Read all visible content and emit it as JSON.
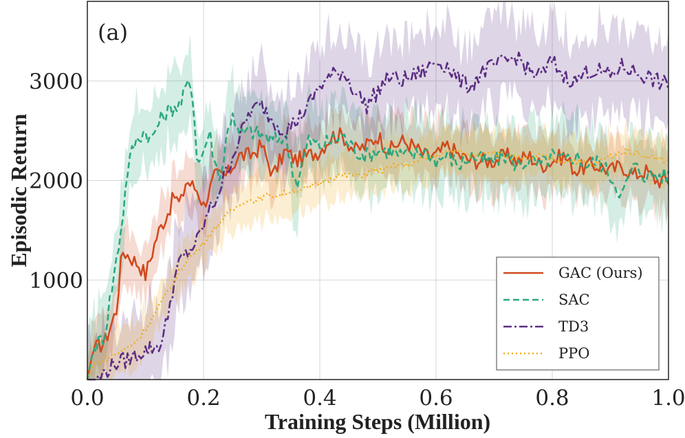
{
  "chart_data": {
    "type": "line",
    "panel_label": "(a)",
    "xlabel": "Training Steps (Million)",
    "ylabel": "Episodic Return",
    "xlim": [
      0.0,
      1.0
    ],
    "ylim": [
      0,
      3800
    ],
    "xticks": [
      0.0,
      0.2,
      0.4,
      0.6,
      0.8,
      1.0
    ],
    "xtick_labels": [
      "0.0",
      "0.2",
      "0.4",
      "0.6",
      "0.8",
      "1.0"
    ],
    "yticks": [
      1000,
      2000,
      3000
    ],
    "ytick_labels": [
      "1000",
      "2000",
      "3000"
    ],
    "grid": true,
    "legend_position": "bottom-right",
    "series": [
      {
        "name": "GAC (Ours)",
        "color": "#d04a1e",
        "dash": "solid",
        "points": [
          [
            0.0,
            0
          ],
          [
            0.01,
            300
          ],
          [
            0.03,
            380
          ],
          [
            0.05,
            700
          ],
          [
            0.06,
            1300
          ],
          [
            0.07,
            1250
          ],
          [
            0.09,
            1150
          ],
          [
            0.1,
            1050
          ],
          [
            0.12,
            1450
          ],
          [
            0.14,
            1700
          ],
          [
            0.15,
            1850
          ],
          [
            0.16,
            1750
          ],
          [
            0.17,
            2000
          ],
          [
            0.19,
            1900
          ],
          [
            0.2,
            1750
          ],
          [
            0.22,
            2050
          ],
          [
            0.24,
            2050
          ],
          [
            0.26,
            2250
          ],
          [
            0.28,
            2250
          ],
          [
            0.3,
            2350
          ],
          [
            0.32,
            2050
          ],
          [
            0.34,
            2300
          ],
          [
            0.36,
            2200
          ],
          [
            0.38,
            2250
          ],
          [
            0.4,
            2300
          ],
          [
            0.42,
            2450
          ],
          [
            0.44,
            2450
          ],
          [
            0.46,
            2300
          ],
          [
            0.48,
            2350
          ],
          [
            0.5,
            2450
          ],
          [
            0.52,
            2300
          ],
          [
            0.54,
            2400
          ],
          [
            0.56,
            2350
          ],
          [
            0.58,
            2250
          ],
          [
            0.6,
            2250
          ],
          [
            0.62,
            2350
          ],
          [
            0.64,
            2250
          ],
          [
            0.66,
            2200
          ],
          [
            0.68,
            2200
          ],
          [
            0.7,
            2200
          ],
          [
            0.72,
            2250
          ],
          [
            0.74,
            2200
          ],
          [
            0.76,
            2250
          ],
          [
            0.78,
            2150
          ],
          [
            0.8,
            2200
          ],
          [
            0.82,
            2250
          ],
          [
            0.84,
            2100
          ],
          [
            0.86,
            2150
          ],
          [
            0.88,
            2150
          ],
          [
            0.9,
            2100
          ],
          [
            0.92,
            2150
          ],
          [
            0.94,
            2050
          ],
          [
            0.96,
            2100
          ],
          [
            0.98,
            2000
          ],
          [
            1.0,
            2000
          ]
        ],
        "band": 280
      },
      {
        "name": "SAC",
        "color": "#2aa87e",
        "dash": "dashed",
        "points": [
          [
            0.0,
            0
          ],
          [
            0.01,
            300
          ],
          [
            0.03,
            450
          ],
          [
            0.04,
            850
          ],
          [
            0.05,
            1200
          ],
          [
            0.06,
            1600
          ],
          [
            0.07,
            2150
          ],
          [
            0.08,
            2350
          ],
          [
            0.09,
            2450
          ],
          [
            0.1,
            2500
          ],
          [
            0.11,
            2400
          ],
          [
            0.12,
            2550
          ],
          [
            0.13,
            2650
          ],
          [
            0.14,
            2700
          ],
          [
            0.15,
            2750
          ],
          [
            0.16,
            2750
          ],
          [
            0.17,
            2950
          ],
          [
            0.18,
            2950
          ],
          [
            0.19,
            2150
          ],
          [
            0.2,
            2300
          ],
          [
            0.21,
            2500
          ],
          [
            0.22,
            2150
          ],
          [
            0.23,
            2050
          ],
          [
            0.24,
            2450
          ],
          [
            0.25,
            2700
          ],
          [
            0.26,
            2450
          ],
          [
            0.28,
            2500
          ],
          [
            0.3,
            2450
          ],
          [
            0.32,
            2400
          ],
          [
            0.34,
            2450
          ],
          [
            0.36,
            1950
          ],
          [
            0.38,
            2400
          ],
          [
            0.4,
            2350
          ],
          [
            0.42,
            2400
          ],
          [
            0.44,
            2450
          ],
          [
            0.46,
            2300
          ],
          [
            0.48,
            2250
          ],
          [
            0.5,
            2300
          ],
          [
            0.52,
            2300
          ],
          [
            0.54,
            2250
          ],
          [
            0.56,
            2250
          ],
          [
            0.58,
            2300
          ],
          [
            0.6,
            2200
          ],
          [
            0.62,
            2250
          ],
          [
            0.64,
            2150
          ],
          [
            0.66,
            2250
          ],
          [
            0.68,
            2200
          ],
          [
            0.7,
            2200
          ],
          [
            0.72,
            2250
          ],
          [
            0.74,
            2150
          ],
          [
            0.76,
            2200
          ],
          [
            0.78,
            2150
          ],
          [
            0.8,
            2250
          ],
          [
            0.82,
            2200
          ],
          [
            0.84,
            2250
          ],
          [
            0.86,
            2150
          ],
          [
            0.88,
            2200
          ],
          [
            0.9,
            2050
          ],
          [
            0.92,
            1850
          ],
          [
            0.94,
            2150
          ],
          [
            0.96,
            2050
          ],
          [
            0.98,
            2050
          ],
          [
            1.0,
            2050
          ]
        ],
        "band": 360
      },
      {
        "name": "TD3",
        "color": "#5b2d82",
        "dash": "dashdot",
        "points": [
          [
            0.0,
            0
          ],
          [
            0.02,
            0
          ],
          [
            0.03,
            80
          ],
          [
            0.05,
            170
          ],
          [
            0.07,
            200
          ],
          [
            0.09,
            270
          ],
          [
            0.11,
            320
          ],
          [
            0.12,
            330
          ],
          [
            0.13,
            400
          ],
          [
            0.14,
            700
          ],
          [
            0.15,
            1000
          ],
          [
            0.16,
            1200
          ],
          [
            0.17,
            1250
          ],
          [
            0.19,
            1400
          ],
          [
            0.21,
            1700
          ],
          [
            0.22,
            1800
          ],
          [
            0.24,
            2100
          ],
          [
            0.26,
            2400
          ],
          [
            0.28,
            2700
          ],
          [
            0.3,
            2750
          ],
          [
            0.32,
            2600
          ],
          [
            0.34,
            2500
          ],
          [
            0.36,
            2600
          ],
          [
            0.38,
            2750
          ],
          [
            0.4,
            2950
          ],
          [
            0.42,
            3050
          ],
          [
            0.44,
            3100
          ],
          [
            0.46,
            2900
          ],
          [
            0.48,
            2750
          ],
          [
            0.5,
            2900
          ],
          [
            0.52,
            3050
          ],
          [
            0.54,
            3000
          ],
          [
            0.56,
            3050
          ],
          [
            0.58,
            3100
          ],
          [
            0.6,
            3200
          ],
          [
            0.62,
            3150
          ],
          [
            0.64,
            3000
          ],
          [
            0.66,
            2950
          ],
          [
            0.68,
            3100
          ],
          [
            0.7,
            3150
          ],
          [
            0.72,
            3200
          ],
          [
            0.74,
            3250
          ],
          [
            0.76,
            3100
          ],
          [
            0.78,
            3050
          ],
          [
            0.8,
            3200
          ],
          [
            0.82,
            3050
          ],
          [
            0.84,
            3000
          ],
          [
            0.86,
            3100
          ],
          [
            0.88,
            3100
          ],
          [
            0.9,
            3050
          ],
          [
            0.92,
            3150
          ],
          [
            0.94,
            3100
          ],
          [
            0.96,
            3050
          ],
          [
            0.98,
            3000
          ],
          [
            1.0,
            2950
          ]
        ],
        "band": 420
      },
      {
        "name": "PPO",
        "color": "#f0ac1e",
        "dash": "dotted",
        "points": [
          [
            0.0,
            0
          ],
          [
            0.01,
            150
          ],
          [
            0.03,
            200
          ],
          [
            0.05,
            260
          ],
          [
            0.07,
            320
          ],
          [
            0.09,
            420
          ],
          [
            0.11,
            600
          ],
          [
            0.13,
            800
          ],
          [
            0.15,
            1000
          ],
          [
            0.17,
            1200
          ],
          [
            0.19,
            1300
          ],
          [
            0.21,
            1450
          ],
          [
            0.23,
            1600
          ],
          [
            0.25,
            1700
          ],
          [
            0.27,
            1800
          ],
          [
            0.29,
            1800
          ],
          [
            0.31,
            1850
          ],
          [
            0.33,
            1850
          ],
          [
            0.35,
            1900
          ],
          [
            0.37,
            1900
          ],
          [
            0.39,
            1950
          ],
          [
            0.41,
            2000
          ],
          [
            0.43,
            2050
          ],
          [
            0.45,
            2050
          ],
          [
            0.47,
            2050
          ],
          [
            0.49,
            2100
          ],
          [
            0.51,
            2100
          ],
          [
            0.53,
            2150
          ],
          [
            0.55,
            2150
          ],
          [
            0.57,
            2200
          ],
          [
            0.6,
            2250
          ],
          [
            0.63,
            2300
          ],
          [
            0.66,
            2250
          ],
          [
            0.69,
            2300
          ],
          [
            0.72,
            2250
          ],
          [
            0.75,
            2200
          ],
          [
            0.78,
            2250
          ],
          [
            0.81,
            2200
          ],
          [
            0.84,
            2200
          ],
          [
            0.87,
            2150
          ],
          [
            0.9,
            2250
          ],
          [
            0.93,
            2300
          ],
          [
            0.96,
            2250
          ],
          [
            1.0,
            2200
          ]
        ],
        "band": 220
      }
    ]
  }
}
